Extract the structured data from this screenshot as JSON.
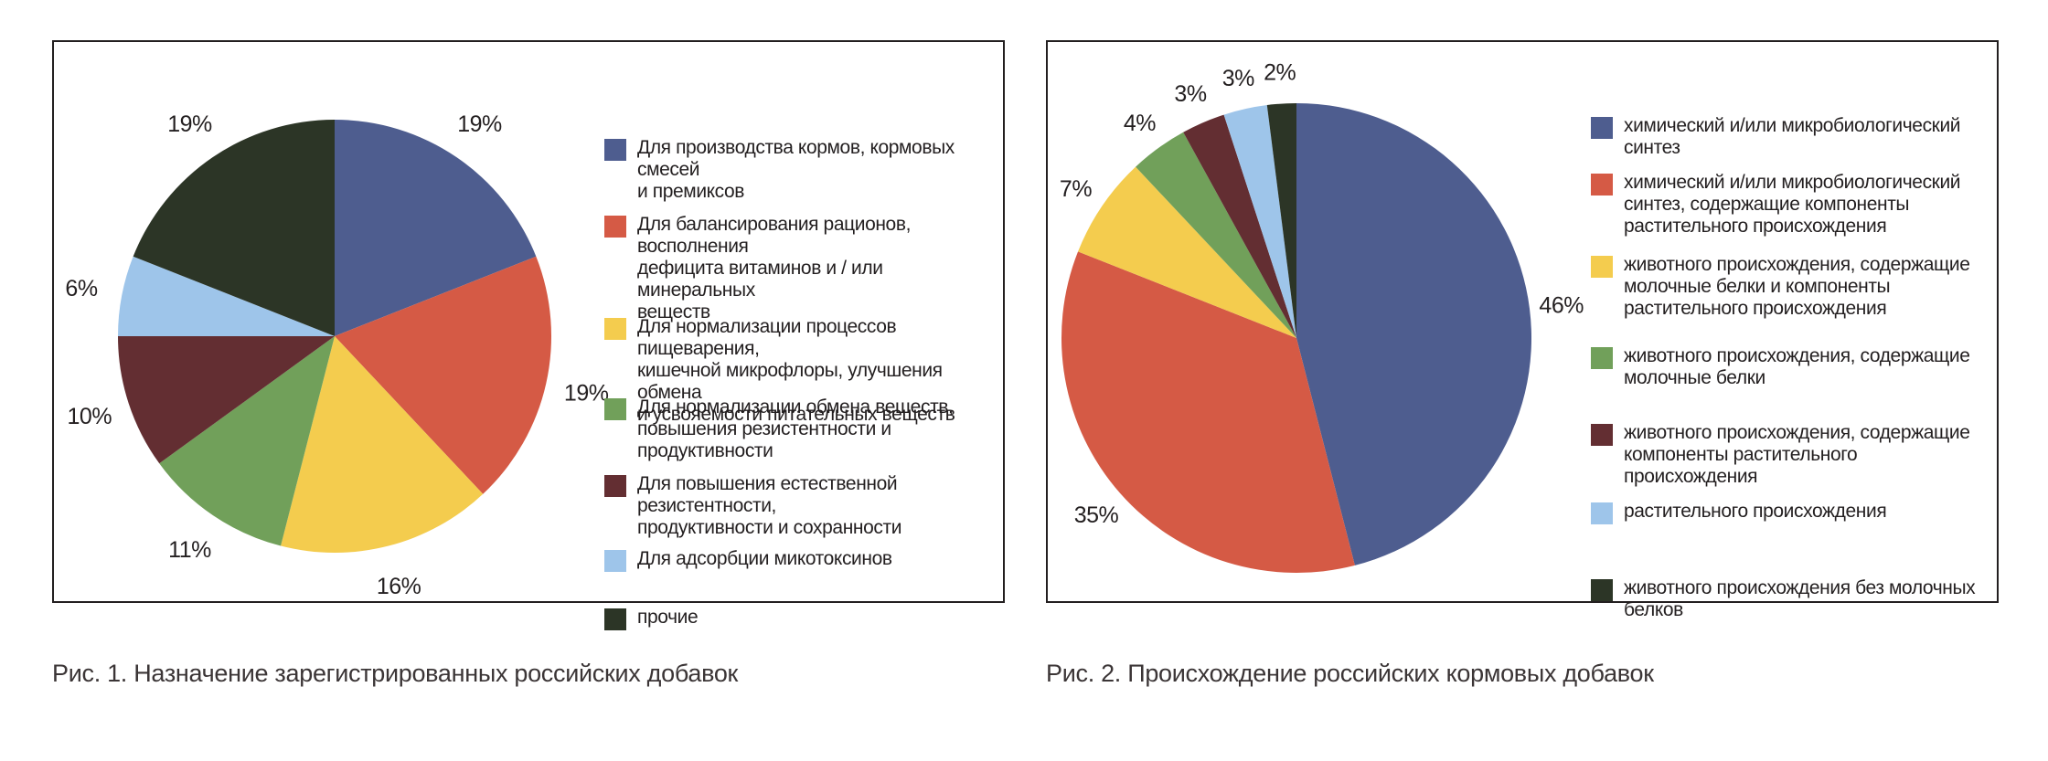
{
  "charts": [
    {
      "caption": "Рис. 1. Назначение зарегистрированных российских добавок",
      "chart_data": {
        "type": "pie",
        "start": "12 o'clock, clockwise",
        "slices": [
          {
            "label": "Для производства кормов, кормовых смесей и премиксов",
            "lines": [
              "Для производства кормов, кормовых смесей",
              "и премиксов"
            ],
            "value": 19,
            "display": "19%",
            "color": "#4e5d8f"
          },
          {
            "label": "Для балансирования рационов, восполнения дефицита витаминов и / или минеральных веществ",
            "lines": [
              "Для балансирования рационов, восполнения",
              "дефицита витаминов и / или минеральных",
              "веществ"
            ],
            "value": 19,
            "display": "19%",
            "color": "#d55a45"
          },
          {
            "label": "Для нормализации процессов пищеварения, кишечной микрофлоры, улучшения обмена и усвояемости питательных веществ",
            "lines": [
              "Для нормализации процессов пищеварения,",
              "кишечной микрофлоры, улучшения обмена",
              "и усвояемости питательных веществ"
            ],
            "value": 16,
            "display": "16%",
            "color": "#f4cc4e"
          },
          {
            "label": "Для нормализации обмена веществ, повышения резистентности и продуктивности",
            "lines": [
              "Для нормализации обмена веществ,",
              "повышения резистентности и продуктивности"
            ],
            "value": 11,
            "display": "11%",
            "color": "#71a05a"
          },
          {
            "label": "Для повышения естественной резистентности, продуктивности и сохранности",
            "lines": [
              "Для повышения естественной резистентности,",
              "продуктивности и сохранности"
            ],
            "value": 10,
            "display": "10%",
            "color": "#632e32"
          },
          {
            "label": "Для адсорбции микотоксинов",
            "lines": [
              "Для адсорбции микотоксинов"
            ],
            "value": 6,
            "display": "6%",
            "color": "#9ec5ea"
          },
          {
            "label": "прочие",
            "lines": [
              "прочие"
            ],
            "value": 19,
            "display": "19%",
            "color": "#2c3526"
          }
        ],
        "legend_position": "right"
      }
    },
    {
      "caption": "Рис. 2. Происхождение российских кормовых добавок",
      "chart_data": {
        "type": "pie",
        "start": "12 o'clock, clockwise",
        "slices": [
          {
            "label": "химический и/или микробиологический синтез",
            "lines": [
              "химический и/или микробиологический синтез"
            ],
            "value": 46,
            "display": "46%",
            "color": "#4e5d8f"
          },
          {
            "label": "химический и/или микробиологический синтез, содержащие компоненты растительного происхождения",
            "lines": [
              "химический и/или микробиологический",
              "синтез, содержащие компоненты",
              "растительного происхождения"
            ],
            "value": 35,
            "display": "35%",
            "color": "#d55a45"
          },
          {
            "label": "животного происхождения, содержащие молочные белки и компоненты растительного происхождения",
            "lines": [
              "животного происхождения, содержащие",
              "молочные белки и компоненты",
              "растительного происхождения"
            ],
            "value": 7,
            "display": "7%",
            "color": "#f4cc4e"
          },
          {
            "label": "животного происхождения, содержащие молочные белки",
            "lines": [
              "животного происхождения, содержащие",
              "молочные белки"
            ],
            "value": 4,
            "display": "4%",
            "color": "#71a05a"
          },
          {
            "label": "животного происхождения, содержащие компоненты растительного происхождения",
            "lines": [
              "животного происхождения, содержащие",
              "компоненты растительного происхождения"
            ],
            "value": 3,
            "display": "3%",
            "color": "#632e32"
          },
          {
            "label": "растительного происхождения",
            "lines": [
              "растительного происхождения"
            ],
            "value": 3,
            "display": "3%",
            "color": "#9ec5ea"
          },
          {
            "label": "животного происхождения без молочных белков",
            "lines": [
              "животного происхождения без молочных",
              "белков"
            ],
            "value": 2,
            "display": "2%",
            "color": "#2c3526"
          }
        ],
        "legend_position": "right"
      }
    }
  ]
}
